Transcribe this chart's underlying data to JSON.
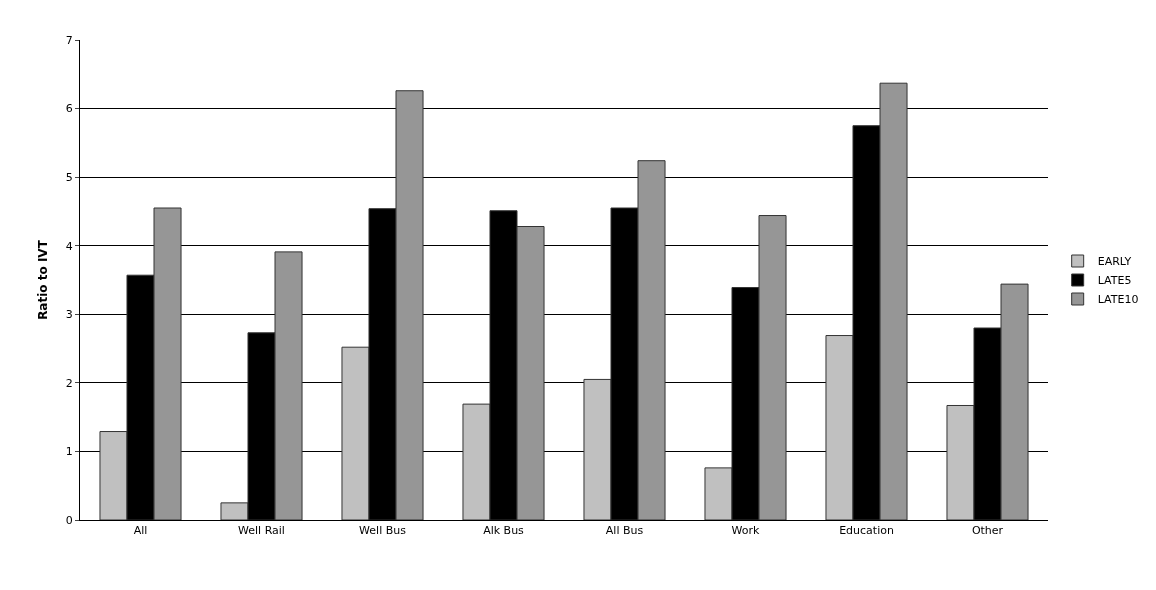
{
  "chart_data": {
    "type": "bar",
    "ylabel": "Ratio to IVT",
    "categories": [
      "All",
      "Well Rail",
      "Well Bus",
      "Alk Bus",
      "All Bus",
      "Work",
      "Education",
      "Other"
    ],
    "series": [
      {
        "name": "EARLY",
        "color": "#c0c0c0",
        "values": [
          1.29,
          0.25,
          2.52,
          1.69,
          2.05,
          0.76,
          2.69,
          1.67
        ]
      },
      {
        "name": "LATE5",
        "color": "#000000",
        "values": [
          3.57,
          2.73,
          4.54,
          4.51,
          4.55,
          3.39,
          5.75,
          2.8
        ]
      },
      {
        "name": "LATE10",
        "color": "#969696",
        "values": [
          4.55,
          3.91,
          6.26,
          4.28,
          5.24,
          4.44,
          6.37,
          3.44
        ]
      }
    ],
    "ylim": [
      0,
      7
    ],
    "yticks": [
      0,
      1,
      2,
      3,
      4,
      5,
      6,
      7
    ],
    "grid": "y",
    "legend": "right"
  }
}
